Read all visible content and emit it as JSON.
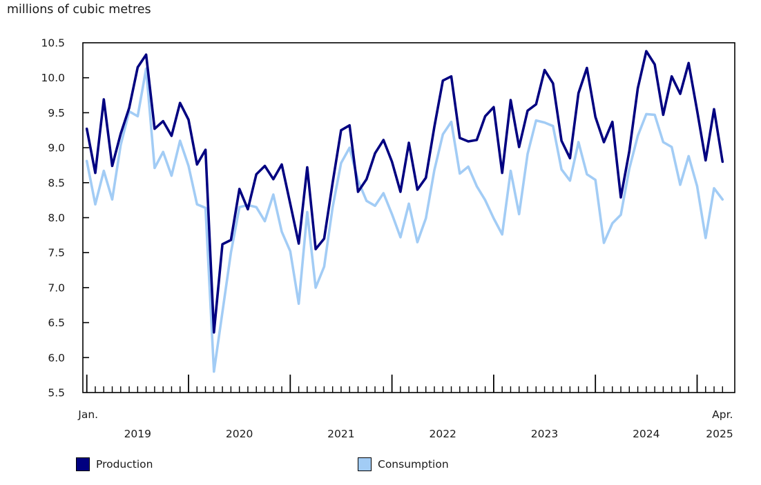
{
  "title": "millions of cubic metres",
  "colors": {
    "production": "#000080",
    "consumption": "#A2CCF5",
    "axis": "#000000",
    "text": "#1a1a1a"
  },
  "y_axis": {
    "step": 0.5,
    "tick_labels": [
      "10.5",
      "10.0",
      "9.5",
      "9.0",
      "8.5",
      "8.0",
      "7.5",
      "7.0",
      "6.5",
      "6.0",
      "5.5"
    ]
  },
  "x_axis": {
    "first_month_label": "Jan.",
    "last_month_label": "Apr.",
    "year_labels": [
      "2019",
      "2020",
      "2021",
      "2022",
      "2023",
      "2024",
      "2025"
    ]
  },
  "legend": {
    "production_label": "Production",
    "consumption_label": "Consumption"
  },
  "chart_data": {
    "type": "line",
    "title": "millions of cubic metres",
    "x_start": "2019-01",
    "x_end": "2025-04",
    "x_frequency": "monthly",
    "ylim": [
      5.5,
      10.5
    ],
    "grid": false,
    "legend_position": "bottom",
    "series": [
      {
        "name": "Production",
        "color": "#000080",
        "values": [
          9.27,
          8.64,
          9.69,
          8.74,
          9.2,
          9.57,
          10.15,
          10.33,
          9.27,
          9.38,
          9.17,
          9.64,
          9.4,
          8.76,
          8.97,
          6.36,
          7.62,
          7.68,
          8.41,
          8.12,
          8.62,
          8.74,
          8.55,
          8.76,
          8.2,
          7.63,
          8.72,
          7.55,
          7.7,
          8.5,
          9.25,
          9.32,
          8.37,
          8.55,
          8.92,
          9.11,
          8.8,
          8.37,
          9.07,
          8.4,
          8.57,
          9.3,
          9.96,
          10.02,
          9.14,
          9.09,
          9.11,
          9.45,
          9.58,
          8.64,
          9.68,
          9.01,
          9.53,
          9.62,
          10.11,
          9.92,
          9.1,
          8.85,
          9.78,
          10.14,
          9.44,
          9.08,
          9.37,
          8.29,
          8.95,
          9.85,
          10.38,
          10.19,
          9.47,
          10.02,
          9.77,
          10.21,
          9.53,
          8.82,
          9.55,
          8.8
        ]
      },
      {
        "name": "Consumption",
        "color": "#A2CCF5",
        "values": [
          8.81,
          8.19,
          8.67,
          8.26,
          9.04,
          9.52,
          9.45,
          10.13,
          8.71,
          8.94,
          8.6,
          9.1,
          8.74,
          8.19,
          8.14,
          5.8,
          6.65,
          7.5,
          8.15,
          8.18,
          8.15,
          7.95,
          8.33,
          7.8,
          7.52,
          6.77,
          8.08,
          7.0,
          7.3,
          8.15,
          8.78,
          9.0,
          8.53,
          8.24,
          8.17,
          8.35,
          8.05,
          7.72,
          8.2,
          7.65,
          7.99,
          8.68,
          9.19,
          9.37,
          8.63,
          8.73,
          8.45,
          8.25,
          7.99,
          7.76,
          8.67,
          8.05,
          8.91,
          9.39,
          9.36,
          9.31,
          8.69,
          8.53,
          9.08,
          8.62,
          8.54,
          7.64,
          7.92,
          8.04,
          8.7,
          9.17,
          9.48,
          9.47,
          9.08,
          9.01,
          8.47,
          8.88,
          8.45,
          7.71,
          8.42,
          8.26
        ]
      }
    ]
  }
}
